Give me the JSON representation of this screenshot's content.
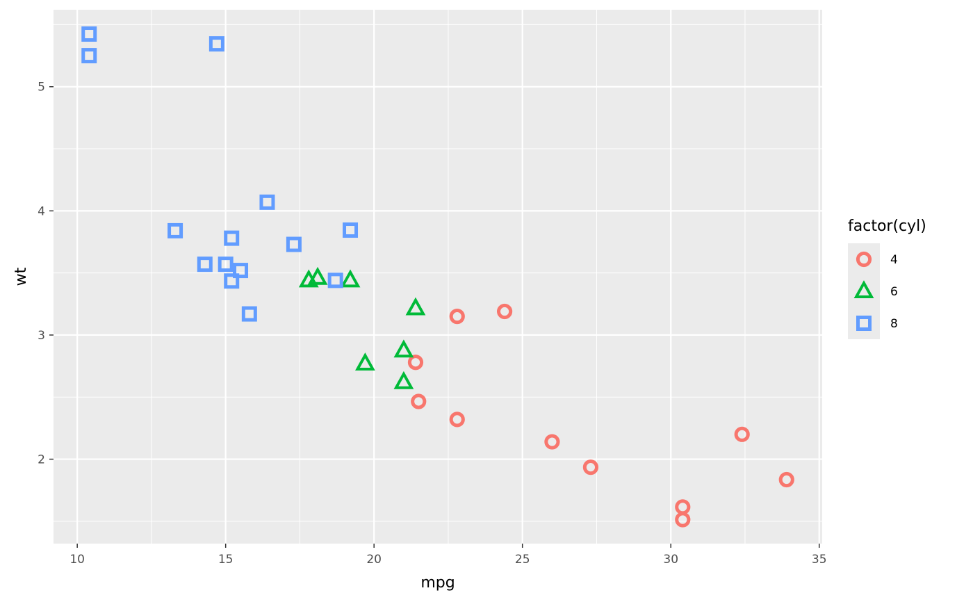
{
  "chart_data": {
    "type": "scatter",
    "xlabel": "mpg",
    "ylabel": "wt",
    "xlim": [
      9.2,
      35.1
    ],
    "ylim": [
      1.32,
      5.62
    ],
    "x_ticks": [
      10,
      15,
      20,
      25,
      30,
      35
    ],
    "y_ticks": [
      2,
      3,
      4,
      5
    ],
    "x_tick_labels": [
      "10",
      "15",
      "20",
      "25",
      "30",
      "35"
    ],
    "y_tick_labels": [
      "2",
      "3",
      "4",
      "5"
    ],
    "grid": true,
    "legend": {
      "title": "factor(cyl)",
      "placement": "right"
    },
    "series": [
      {
        "name": "4",
        "shape": "circle",
        "color": "#F8766D",
        "points": [
          [
            22.8,
            2.32
          ],
          [
            24.4,
            3.19
          ],
          [
            22.8,
            3.15
          ],
          [
            32.4,
            2.2
          ],
          [
            30.4,
            1.615
          ],
          [
            33.9,
            1.835
          ],
          [
            21.5,
            2.465
          ],
          [
            27.3,
            1.935
          ],
          [
            26.0,
            2.14
          ],
          [
            30.4,
            1.513
          ],
          [
            21.4,
            2.78
          ]
        ]
      },
      {
        "name": "6",
        "shape": "triangle",
        "color": "#00BA38",
        "points": [
          [
            21.0,
            2.62
          ],
          [
            21.0,
            2.875
          ],
          [
            21.4,
            3.215
          ],
          [
            18.1,
            3.46
          ],
          [
            19.2,
            3.44
          ],
          [
            17.8,
            3.44
          ],
          [
            19.7,
            2.77
          ]
        ]
      },
      {
        "name": "8",
        "shape": "square",
        "color": "#619CFF",
        "points": [
          [
            18.7,
            3.44
          ],
          [
            14.3,
            3.57
          ],
          [
            16.4,
            4.07
          ],
          [
            17.3,
            3.73
          ],
          [
            15.2,
            3.78
          ],
          [
            10.4,
            5.25
          ],
          [
            10.4,
            5.424
          ],
          [
            14.7,
            5.345
          ],
          [
            15.5,
            3.52
          ],
          [
            15.2,
            3.435
          ],
          [
            13.3,
            3.84
          ],
          [
            19.2,
            3.845
          ],
          [
            15.8,
            3.17
          ],
          [
            15.0,
            3.57
          ]
        ]
      }
    ]
  }
}
